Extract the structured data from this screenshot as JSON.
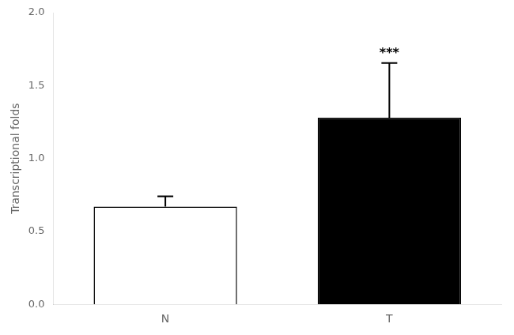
{
  "chart_data": {
    "type": "bar",
    "categories": [
      "N",
      "T"
    ],
    "values": [
      0.67,
      1.28
    ],
    "yerr_up": [
      0.07,
      0.375
    ],
    "colors": [
      "white",
      "black"
    ],
    "ylabel": "Transcriptional folds",
    "ylim": [
      0,
      2
    ],
    "yticks": [
      {
        "value": 0,
        "label": "0.0"
      },
      0.5,
      {
        "value": 1,
        "label": "1.0"
      },
      1.5,
      {
        "value": 2,
        "label": "2.0"
      }
    ],
    "annotations": [
      {
        "text": "***",
        "category": "T"
      }
    ],
    "grid": false
  }
}
